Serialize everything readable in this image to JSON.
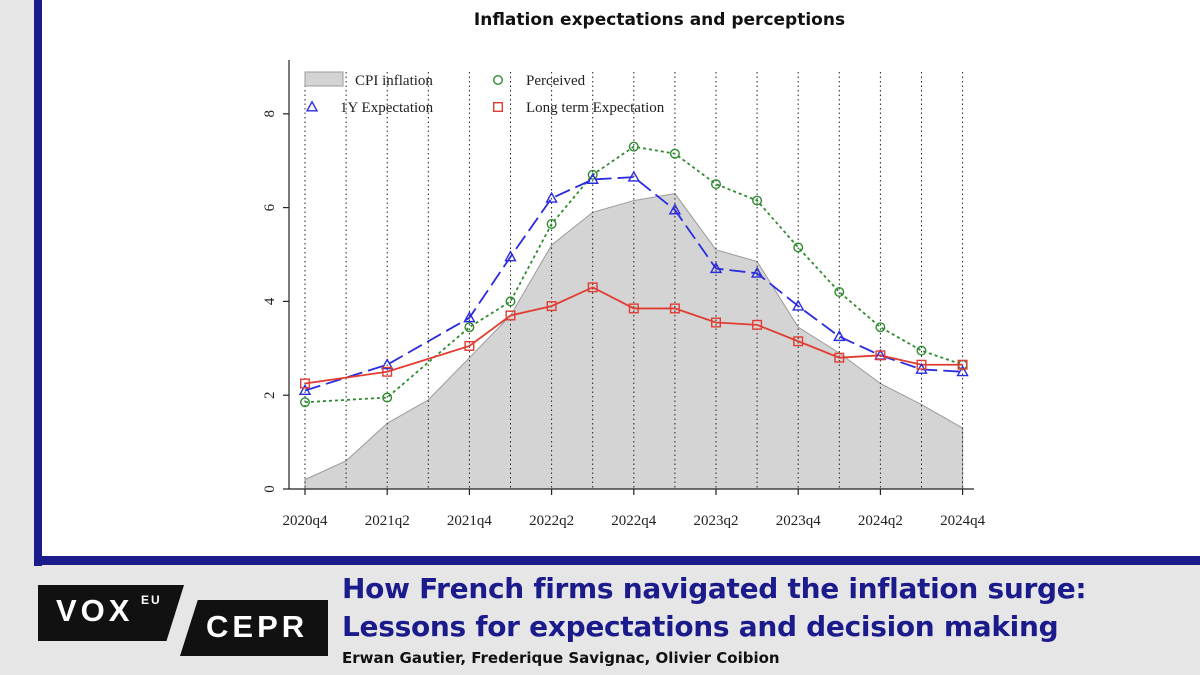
{
  "chart_data": {
    "type": "line",
    "title": "Inflation expectations and perceptions",
    "x": [
      "2020q4",
      "2021q1",
      "2021q2",
      "2021q3",
      "2021q4",
      "2022q1",
      "2022q2",
      "2022q3",
      "2022q4",
      "2023q1",
      "2023q2",
      "2023q3",
      "2023q4",
      "2024q1",
      "2024q2",
      "2024q3",
      "2024q4"
    ],
    "tick_labels": [
      "2020q4",
      "2021q2",
      "2021q4",
      "2022q2",
      "2022q4",
      "2023q2",
      "2023q4",
      "2024q2",
      "2024q4"
    ],
    "y_ticks": [
      "0",
      "2",
      "4",
      "6",
      "8"
    ],
    "ylim": [
      0,
      9.2
    ],
    "grid": "vertical dotted at each quarter",
    "legend_position": "top-left",
    "series": [
      {
        "name": "CPI inflation",
        "style": "area",
        "color": "#d4d4d4",
        "values": [
          0.2,
          0.6,
          1.4,
          1.9,
          2.8,
          3.7,
          5.2,
          5.9,
          6.15,
          6.3,
          5.1,
          4.85,
          3.45,
          2.9,
          2.25,
          1.8,
          1.3
        ]
      },
      {
        "name": "Perceived",
        "style": "dotted",
        "marker": "circle",
        "color": "#2e8b2e",
        "values": [
          1.85,
          null,
          1.95,
          null,
          3.45,
          4.0,
          5.65,
          6.7,
          7.3,
          7.15,
          6.5,
          6.15,
          5.15,
          4.2,
          3.45,
          2.95,
          2.65
        ]
      },
      {
        "name": "1Y Expectation",
        "style": "longdash",
        "marker": "triangle",
        "color": "#2b2be0",
        "values": [
          2.1,
          null,
          2.65,
          null,
          3.65,
          4.95,
          6.2,
          6.6,
          6.65,
          5.95,
          4.7,
          4.6,
          3.9,
          3.25,
          2.85,
          2.55,
          2.5
        ]
      },
      {
        "name": "Long term Expectation",
        "style": "solid",
        "marker": "square",
        "color": "#e03c31",
        "values": [
          2.25,
          null,
          2.5,
          null,
          3.05,
          3.7,
          3.9,
          4.3,
          3.85,
          3.85,
          3.55,
          3.5,
          3.15,
          2.8,
          2.85,
          2.65,
          2.65
        ]
      }
    ]
  },
  "footer": {
    "headline_line1": "How French firms navigated the inflation surge:",
    "headline_line2": "Lessons for expectations and decision making",
    "authors": "Erwan Gautier, Frederique Savignac, Olivier Coibion"
  },
  "brand": {
    "vox": "VOX",
    "eu": "EU",
    "cepr": "CEPR",
    "accent_color": "#1b1b8c"
  }
}
